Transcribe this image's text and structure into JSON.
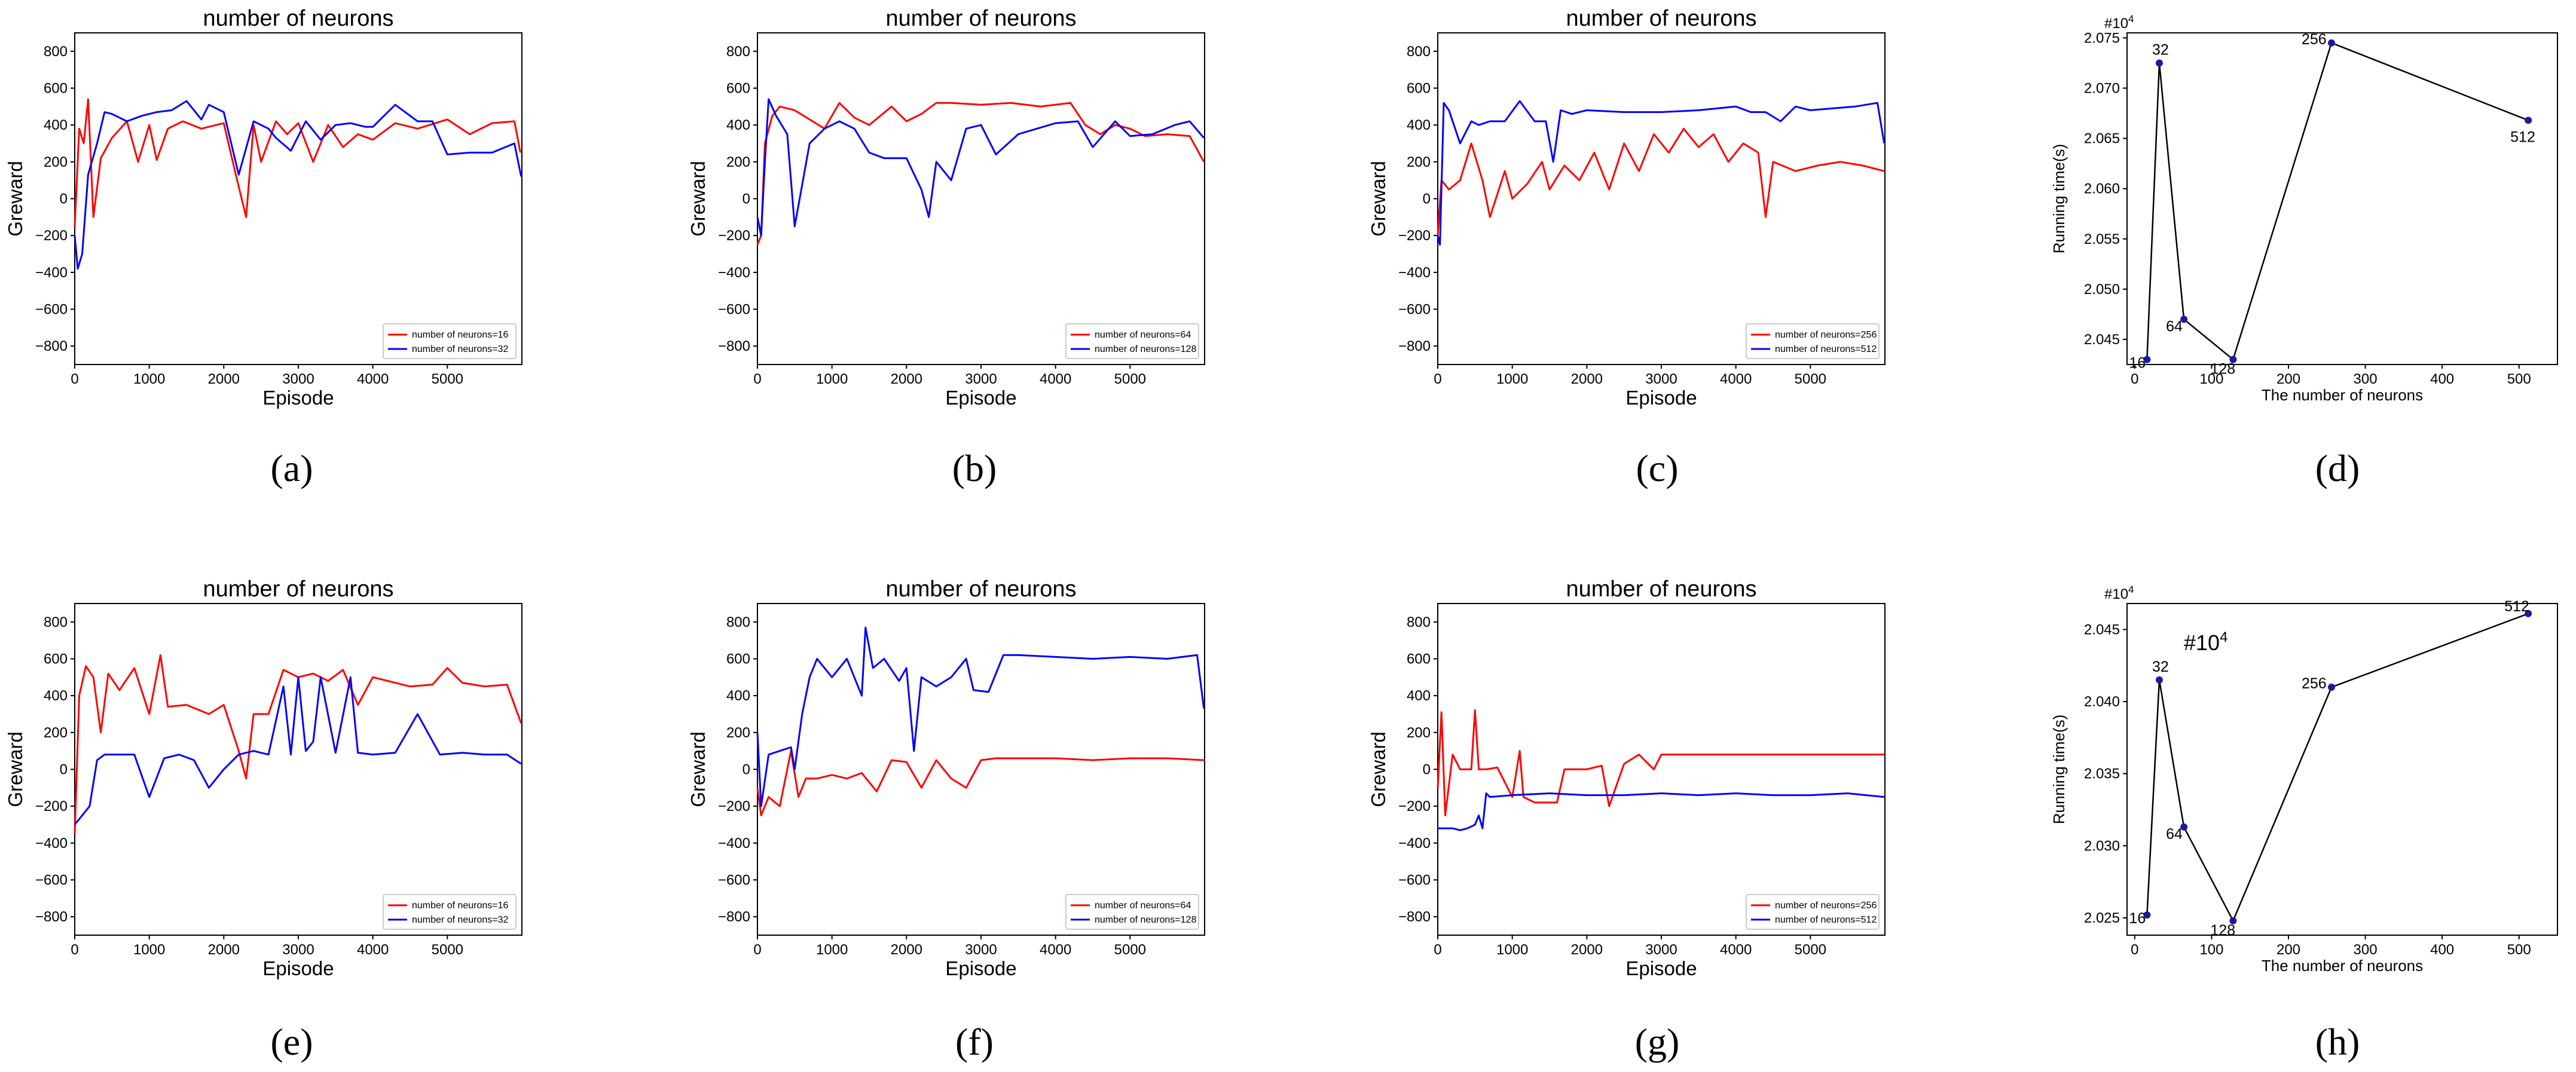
{
  "colors": {
    "red": "#ff0000",
    "blue": "#0000ff",
    "black": "#000000",
    "dot": "#1a1aa0"
  },
  "chart_data": [
    {
      "type": "line",
      "panel_label": "(a)",
      "title": "number of neurons",
      "xlabel": "Episode",
      "ylabel": "Greward",
      "xlim": [
        0,
        6000
      ],
      "ylim": [
        -900,
        900
      ],
      "xticks": [
        0,
        1000,
        2000,
        3000,
        4000,
        5000
      ],
      "yticks": [
        -800,
        -600,
        -400,
        -200,
        0,
        200,
        400,
        600,
        800
      ],
      "series": [
        {
          "name": "number of neurons=16",
          "color": "#ff0000",
          "x": [
            0,
            60,
            120,
            180,
            250,
            350,
            500,
            700,
            850,
            1000,
            1100,
            1250,
            1450,
            1700,
            2000,
            2150,
            2300,
            2400,
            2500,
            2700,
            2850,
            3000,
            3200,
            3400,
            3600,
            3800,
            4000,
            4300,
            4600,
            5000,
            5300,
            5600,
            5900,
            5980
          ],
          "y": [
            -150,
            380,
            300,
            540,
            -100,
            220,
            330,
            420,
            200,
            400,
            210,
            380,
            420,
            380,
            410,
            150,
            -100,
            400,
            200,
            420,
            350,
            410,
            200,
            400,
            280,
            350,
            320,
            410,
            380,
            430,
            350,
            410,
            420,
            250
          ]
        },
        {
          "name": "number of neurons=32",
          "color": "#0000ff",
          "x": [
            0,
            40,
            100,
            180,
            300,
            400,
            500,
            700,
            900,
            1100,
            1300,
            1500,
            1700,
            1800,
            2000,
            2200,
            2400,
            2600,
            2700,
            2900,
            3100,
            3300,
            3500,
            3700,
            3900,
            4000,
            4300,
            4600,
            4800,
            5000,
            5300,
            5600,
            5900,
            5990
          ],
          "y": [
            -200,
            -380,
            -300,
            130,
            300,
            470,
            460,
            420,
            450,
            470,
            480,
            530,
            430,
            510,
            470,
            130,
            420,
            380,
            330,
            260,
            420,
            320,
            400,
            410,
            390,
            390,
            510,
            420,
            420,
            240,
            250,
            250,
            300,
            120
          ]
        }
      ]
    },
    {
      "type": "line",
      "panel_label": "(b)",
      "title": "number of neurons",
      "xlabel": "Episode",
      "ylabel": "Greward",
      "xlim": [
        0,
        6000
      ],
      "ylim": [
        -900,
        900
      ],
      "xticks": [
        0,
        1000,
        2000,
        3000,
        4000,
        5000
      ],
      "yticks": [
        -800,
        -600,
        -400,
        -200,
        0,
        200,
        400,
        600,
        800
      ],
      "series": [
        {
          "name": "number of neurons=64",
          "color": "#ff0000",
          "x": [
            0,
            50,
            100,
            200,
            300,
            500,
            700,
            900,
            1100,
            1300,
            1500,
            1800,
            2000,
            2200,
            2400,
            2600,
            3000,
            3400,
            3800,
            4200,
            4400,
            4600,
            4800,
            5000,
            5200,
            5500,
            5800,
            5990
          ],
          "y": [
            -250,
            -200,
            300,
            450,
            500,
            480,
            430,
            380,
            520,
            440,
            400,
            500,
            420,
            460,
            520,
            520,
            510,
            520,
            500,
            520,
            400,
            350,
            400,
            380,
            340,
            350,
            340,
            200
          ]
        },
        {
          "name": "number of neurons=128",
          "color": "#0000ff",
          "x": [
            0,
            50,
            100,
            150,
            250,
            400,
            500,
            700,
            900,
            1100,
            1300,
            1500,
            1700,
            2000,
            2200,
            2300,
            2400,
            2600,
            2800,
            3000,
            3200,
            3500,
            4000,
            4300,
            4500,
            4800,
            5000,
            5300,
            5600,
            5800,
            5990
          ],
          "y": [
            -100,
            -200,
            200,
            540,
            450,
            350,
            -150,
            300,
            380,
            420,
            380,
            250,
            220,
            220,
            50,
            -100,
            200,
            100,
            380,
            400,
            240,
            350,
            410,
            420,
            280,
            420,
            340,
            350,
            400,
            420,
            330
          ]
        }
      ]
    },
    {
      "type": "line",
      "panel_label": "(c)",
      "title": "number of neurons",
      "xlabel": "Episode",
      "ylabel": "Greward",
      "xlim": [
        0,
        6000
      ],
      "ylim": [
        -900,
        900
      ],
      "xticks": [
        0,
        1000,
        2000,
        3000,
        4000,
        5000
      ],
      "yticks": [
        -800,
        -600,
        -400,
        -200,
        0,
        200,
        400,
        600,
        800
      ],
      "series": [
        {
          "name": "number of neurons=256",
          "color": "#ff0000",
          "x": [
            0,
            50,
            150,
            300,
            450,
            600,
            700,
            900,
            1000,
            1200,
            1400,
            1500,
            1700,
            1900,
            2100,
            2300,
            2500,
            2700,
            2900,
            3100,
            3300,
            3500,
            3700,
            3900,
            4100,
            4300,
            4400,
            4500,
            4800,
            5100,
            5400,
            5700,
            5990
          ],
          "y": [
            -200,
            100,
            50,
            100,
            300,
            100,
            -100,
            150,
            0,
            80,
            200,
            50,
            180,
            100,
            250,
            50,
            300,
            150,
            350,
            250,
            380,
            280,
            350,
            200,
            300,
            250,
            -100,
            200,
            150,
            180,
            200,
            180,
            150
          ]
        },
        {
          "name": "number of neurons=512",
          "color": "#0000ff",
          "x": [
            0,
            30,
            80,
            150,
            300,
            450,
            550,
            700,
            900,
            1100,
            1300,
            1450,
            1550,
            1650,
            1800,
            2000,
            2500,
            3000,
            3500,
            4000,
            4200,
            4400,
            4600,
            4800,
            5000,
            5300,
            5600,
            5900,
            5990
          ],
          "y": [
            -200,
            -250,
            520,
            480,
            300,
            420,
            400,
            420,
            420,
            530,
            420,
            420,
            200,
            480,
            460,
            480,
            470,
            470,
            480,
            500,
            470,
            470,
            420,
            500,
            480,
            490,
            500,
            520,
            300
          ]
        }
      ]
    },
    {
      "type": "line",
      "panel_label": "(d)",
      "xlabel": "The number of neurons",
      "ylabel": "Running time(s)",
      "multiplier": "#10",
      "multiplier_exp": "4",
      "xlim": [
        -10,
        550
      ],
      "ylim": [
        2.0425,
        2.0755
      ],
      "xticks": [
        0,
        100,
        200,
        300,
        400,
        500
      ],
      "yticks": [
        2.045,
        2.05,
        2.055,
        2.06,
        2.065,
        2.07,
        2.075
      ],
      "ytick_labels": [
        "2.045",
        "2.050",
        "2.055",
        "2.060",
        "2.065",
        "2.070",
        "2.075"
      ],
      "x": [
        16,
        32,
        64,
        128,
        256,
        512
      ],
      "y": [
        2.043,
        2.0725,
        2.047,
        2.043,
        2.0745,
        2.0668
      ],
      "point_labels": [
        "16",
        "32",
        "64",
        "128",
        "256",
        "512"
      ]
    },
    {
      "type": "line",
      "panel_label": "(e)",
      "title": "number of neurons",
      "xlabel": "Episode",
      "ylabel": "Greward",
      "xlim": [
        0,
        6000
      ],
      "ylim": [
        -900,
        900
      ],
      "xticks": [
        0,
        1000,
        2000,
        3000,
        4000,
        5000
      ],
      "yticks": [
        -800,
        -600,
        -400,
        -200,
        0,
        200,
        400,
        600,
        800
      ],
      "series": [
        {
          "name": "number of neurons=16",
          "color": "#ff0000",
          "x": [
            0,
            60,
            150,
            250,
            350,
            450,
            600,
            800,
            1000,
            1150,
            1250,
            1500,
            1800,
            2000,
            2200,
            2300,
            2400,
            2600,
            2800,
            3000,
            3200,
            3400,
            3600,
            3800,
            4000,
            4200,
            4500,
            4800,
            5000,
            5200,
            5500,
            5800,
            5990
          ],
          "y": [
            -350,
            400,
            560,
            500,
            200,
            520,
            430,
            550,
            300,
            620,
            340,
            350,
            300,
            350,
            100,
            -50,
            300,
            300,
            540,
            500,
            520,
            480,
            540,
            350,
            500,
            480,
            450,
            460,
            550,
            470,
            450,
            460,
            250
          ]
        },
        {
          "name": "number of neurons=32",
          "color": "#0000ff",
          "x": [
            0,
            100,
            200,
            300,
            400,
            600,
            800,
            1000,
            1200,
            1400,
            1600,
            1800,
            2000,
            2200,
            2400,
            2600,
            2800,
            2900,
            3000,
            3100,
            3200,
            3300,
            3500,
            3700,
            3800,
            4000,
            4300,
            4600,
            4900,
            5200,
            5500,
            5800,
            5990
          ],
          "y": [
            -300,
            -250,
            -200,
            50,
            80,
            80,
            80,
            -150,
            60,
            80,
            50,
            -100,
            0,
            80,
            100,
            80,
            450,
            80,
            500,
            100,
            150,
            500,
            90,
            500,
            90,
            80,
            90,
            300,
            80,
            90,
            80,
            80,
            30
          ]
        }
      ]
    },
    {
      "type": "line",
      "panel_label": "(f)",
      "title": "number of neurons",
      "xlabel": "Episode",
      "ylabel": "Greward",
      "xlim": [
        0,
        6000
      ],
      "ylim": [
        -900,
        900
      ],
      "xticks": [
        0,
        1000,
        2000,
        3000,
        4000,
        5000
      ],
      "yticks": [
        -800,
        -600,
        -400,
        -200,
        0,
        200,
        400,
        600,
        800
      ],
      "series": [
        {
          "name": "number of neurons=64",
          "color": "#ff0000",
          "x": [
            0,
            50,
            150,
            300,
            450,
            550,
            650,
            800,
            1000,
            1200,
            1400,
            1600,
            1800,
            2000,
            2200,
            2400,
            2600,
            2800,
            3000,
            3200,
            3500,
            4000,
            4500,
            5000,
            5500,
            5990
          ],
          "y": [
            -100,
            -250,
            -150,
            -200,
            100,
            -150,
            -50,
            -50,
            -30,
            -50,
            -20,
            -120,
            50,
            40,
            -100,
            50,
            -50,
            -100,
            50,
            60,
            60,
            60,
            50,
            60,
            60,
            50
          ]
        },
        {
          "name": "number of neurons=128",
          "color": "#0000ff",
          "x": [
            0,
            50,
            150,
            300,
            450,
            500,
            600,
            700,
            800,
            1000,
            1200,
            1400,
            1450,
            1550,
            1700,
            1900,
            2000,
            2100,
            2200,
            2400,
            2600,
            2800,
            2900,
            3100,
            3300,
            3500,
            4000,
            4500,
            5000,
            5500,
            5900,
            5990
          ],
          "y": [
            200,
            -200,
            80,
            100,
            120,
            0,
            300,
            500,
            600,
            500,
            600,
            400,
            770,
            550,
            600,
            480,
            550,
            100,
            500,
            450,
            500,
            600,
            430,
            420,
            620,
            620,
            610,
            600,
            610,
            600,
            620,
            330
          ]
        }
      ]
    },
    {
      "type": "line",
      "panel_label": "(g)",
      "title": "number of neurons",
      "xlabel": "Episode",
      "ylabel": "Greward",
      "xlim": [
        0,
        6000
      ],
      "ylim": [
        -900,
        900
      ],
      "xticks": [
        0,
        1000,
        2000,
        3000,
        4000,
        5000
      ],
      "yticks": [
        -800,
        -600,
        -400,
        -200,
        0,
        200,
        400,
        600,
        800
      ],
      "series": [
        {
          "name": "number of neurons=256",
          "color": "#ff0000",
          "x": [
            0,
            50,
            100,
            200,
            300,
            450,
            500,
            550,
            650,
            800,
            1000,
            1100,
            1150,
            1300,
            1600,
            1700,
            2000,
            2200,
            2300,
            2500,
            2700,
            2900,
            3000,
            3500,
            4000,
            4500,
            5000,
            5500,
            5990
          ],
          "y": [
            -100,
            310,
            -250,
            80,
            0,
            0,
            320,
            0,
            0,
            10,
            -150,
            100,
            -150,
            -180,
            -180,
            0,
            0,
            20,
            -200,
            30,
            80,
            0,
            80,
            80,
            80,
            80,
            80,
            80,
            80
          ]
        },
        {
          "name": "number of neurons=512",
          "color": "#0000ff",
          "x": [
            0,
            100,
            200,
            300,
            400,
            500,
            550,
            600,
            650,
            700,
            1000,
            1500,
            2000,
            2500,
            3000,
            3500,
            4000,
            4500,
            5000,
            5500,
            5990
          ],
          "y": [
            -320,
            -320,
            -320,
            -330,
            -320,
            -300,
            -250,
            -320,
            -130,
            -150,
            -140,
            -130,
            -140,
            -140,
            -130,
            -140,
            -130,
            -140,
            -140,
            -130,
            -150
          ]
        }
      ]
    },
    {
      "type": "line",
      "panel_label": "(h)",
      "xlabel": "The number of neurons",
      "ylabel": "Running time(s)",
      "multiplier": "#10",
      "multiplier_exp": "4",
      "annotation": "#10",
      "annotation_exp": "4",
      "xlim": [
        -10,
        550
      ],
      "ylim": [
        2.0238,
        2.0468
      ],
      "xticks": [
        0,
        100,
        200,
        300,
        400,
        500
      ],
      "yticks": [
        2.025,
        2.03,
        2.035,
        2.04,
        2.045
      ],
      "ytick_labels": [
        "2.025",
        "2.030",
        "2.035",
        "2.040",
        "2.045"
      ],
      "x": [
        16,
        32,
        64,
        128,
        256,
        512
      ],
      "y": [
        2.0252,
        2.0415,
        2.0313,
        2.0248,
        2.041,
        2.0461
      ],
      "point_labels": [
        "16",
        "32",
        "64",
        "128",
        "256",
        "512"
      ]
    }
  ]
}
